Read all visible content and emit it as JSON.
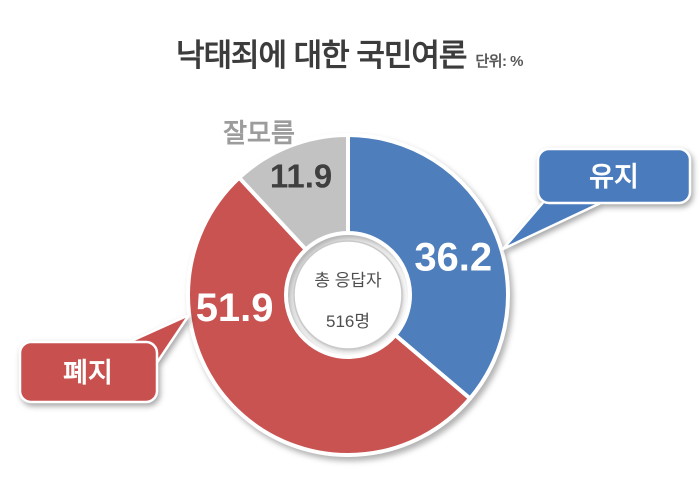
{
  "page": {
    "background": "#ffffff"
  },
  "header": {
    "title": "낙태죄에 대한 국민여론",
    "unit_label": "단위: %"
  },
  "chart_data": {
    "type": "pie",
    "subtype": "donut",
    "title": "낙태죄에 대한 국민여론",
    "unit": "%",
    "start_angle_deg": 0,
    "direction": "clockwise",
    "legend": "none",
    "categories": [
      "유지",
      "폐지",
      "잘모름"
    ],
    "values": [
      36.2,
      51.9,
      11.9
    ],
    "slices": [
      {
        "id": "maintain",
        "label": "유지",
        "value": 36.2,
        "color": "#4e7ebb",
        "value_text_color": "#ffffff",
        "annotation": "callout-right"
      },
      {
        "id": "abolish",
        "label": "폐지",
        "value": 51.9,
        "color": "#c85351",
        "value_text_color": "#ffffff",
        "annotation": "callout-left"
      },
      {
        "id": "unknown",
        "label": "잘모름",
        "value": 11.9,
        "color": "#c2c2c2",
        "value_text_color": "#3f3f3f",
        "annotation": "text-above"
      }
    ],
    "center_label": {
      "line1": "총 응답자",
      "line2": "516명"
    },
    "total_respondents": 516
  },
  "colors": {
    "callout_maintain": "#4a7cbd",
    "callout_abolish": "#c85150",
    "title_text": "#3c3c3c",
    "side_label_text": "#9c9c9c",
    "center_text": "#4f4f4f"
  }
}
